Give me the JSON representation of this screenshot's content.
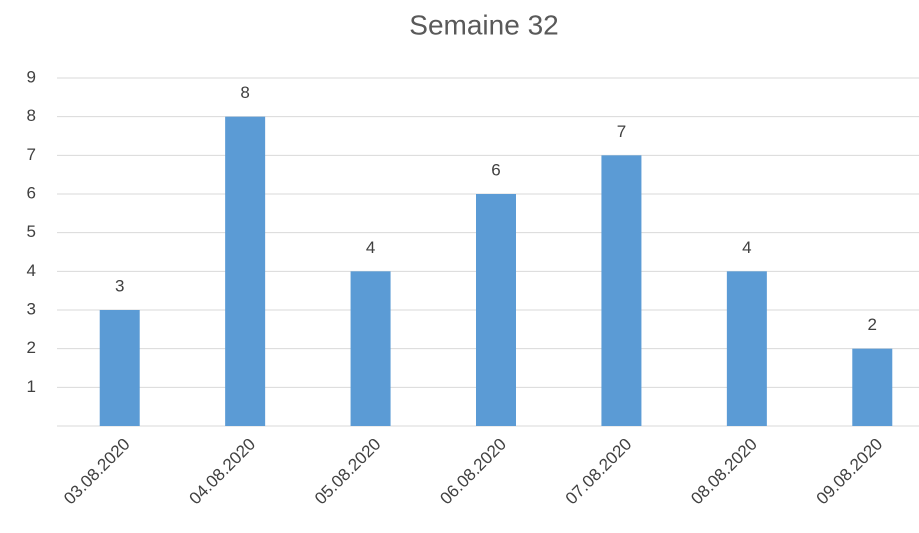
{
  "chart_data": {
    "type": "bar",
    "title": "Semaine 32",
    "categories": [
      "03.08.2020",
      "04.08.2020",
      "05.08.2020",
      "06.08.2020",
      "07.08.2020",
      "08.08.2020",
      "09.08.2020"
    ],
    "values": [
      3,
      8,
      4,
      6,
      7,
      4,
      2
    ],
    "color": "#5b9bd5",
    "ylim": [
      0,
      9
    ],
    "yticks": [
      1,
      2,
      3,
      4,
      5,
      6,
      7,
      8,
      9
    ],
    "grid": true
  }
}
